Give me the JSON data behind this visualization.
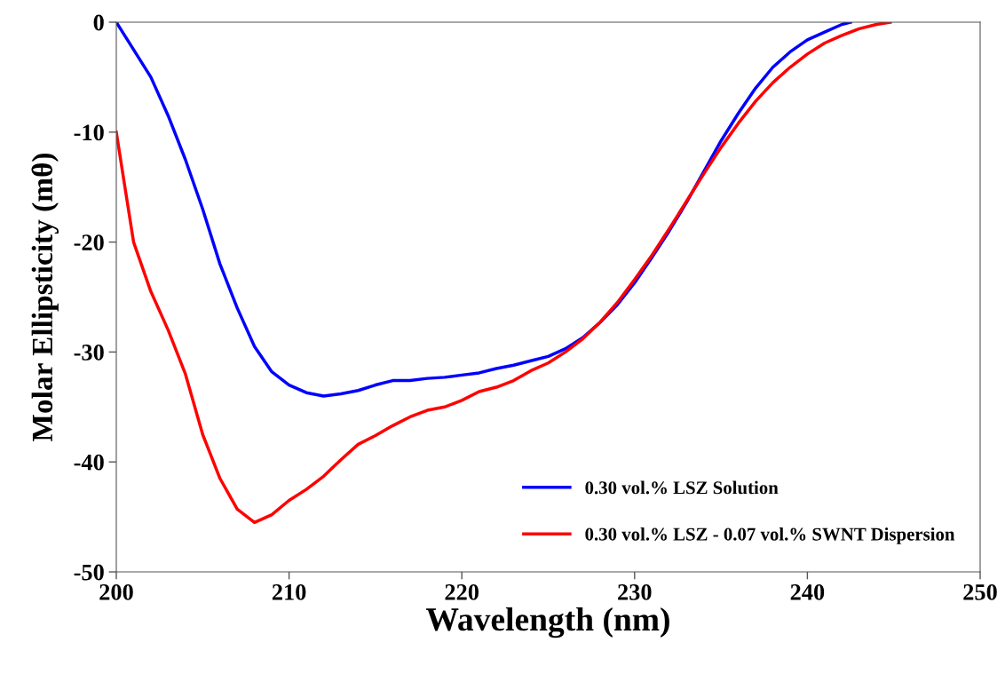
{
  "chart_data": {
    "type": "line",
    "xlabel": "Wavelength (nm)",
    "ylabel": "Molar Ellipsticity (mθ)",
    "xlim": [
      200,
      250
    ],
    "xticks": [
      200,
      210,
      220,
      230,
      240,
      250
    ],
    "ylim": [
      -50,
      0
    ],
    "yticks": [
      -50,
      -40,
      -30,
      -20,
      -10,
      0
    ],
    "legend": "bottom right",
    "grid": false,
    "marker": "none",
    "line_style": "solid",
    "series": [
      {
        "name": "0.30 vol.% LSZ Solution",
        "color": "#0000ff",
        "x": [
          200,
          201,
          202,
          203,
          204,
          205,
          206,
          207,
          208,
          209,
          210,
          211,
          212,
          213,
          214,
          215,
          216,
          217,
          218,
          219,
          220,
          221,
          222,
          223,
          224,
          225,
          226,
          227,
          228,
          229,
          230,
          231,
          232,
          233,
          234,
          235,
          236,
          237,
          238,
          239,
          240,
          241,
          242,
          242.5
        ],
        "values": [
          0,
          -2.5,
          -5,
          -8.5,
          -12.5,
          -17,
          -22,
          -26,
          -29.5,
          -31.8,
          -33,
          -33.7,
          -34,
          -33.8,
          -33.5,
          -33,
          -32.6,
          -32.6,
          -32.4,
          -32.3,
          -32.1,
          -31.9,
          -31.5,
          -31.2,
          -30.8,
          -30.4,
          -29.7,
          -28.7,
          -27.3,
          -25.7,
          -23.7,
          -21.4,
          -19,
          -16.4,
          -13.6,
          -10.8,
          -8.3,
          -6,
          -4.1,
          -2.7,
          -1.6,
          -0.9,
          -0.2,
          0
        ]
      },
      {
        "name": "0.30 vol.% LSZ - 0.07 vol.% SWNT Dispersion",
        "color": "#ff0000",
        "x": [
          200,
          200.5,
          201,
          202,
          203,
          204,
          205,
          206,
          207,
          208,
          209,
          210,
          211,
          212,
          213,
          214,
          215,
          216,
          217,
          218,
          219,
          220,
          221,
          222,
          223,
          224,
          225,
          226,
          227,
          228,
          229,
          230,
          231,
          232,
          233,
          234,
          235,
          236,
          237,
          238,
          239,
          240,
          241,
          242,
          243,
          244,
          244.8
        ],
        "values": [
          -10,
          -15,
          -20,
          -24.5,
          -28,
          -32,
          -37.5,
          -41.5,
          -44.3,
          -45.5,
          -44.8,
          -43.5,
          -42.5,
          -41.3,
          -39.8,
          -38.4,
          -37.6,
          -36.7,
          -35.9,
          -35.3,
          -35,
          -34.4,
          -33.6,
          -33.2,
          -32.6,
          -31.7,
          -31,
          -30,
          -28.8,
          -27.3,
          -25.5,
          -23.4,
          -21.2,
          -18.8,
          -16.3,
          -13.8,
          -11.4,
          -9.2,
          -7.2,
          -5.5,
          -4.1,
          -2.9,
          -1.9,
          -1.2,
          -0.6,
          -0.2,
          0
        ]
      }
    ]
  }
}
